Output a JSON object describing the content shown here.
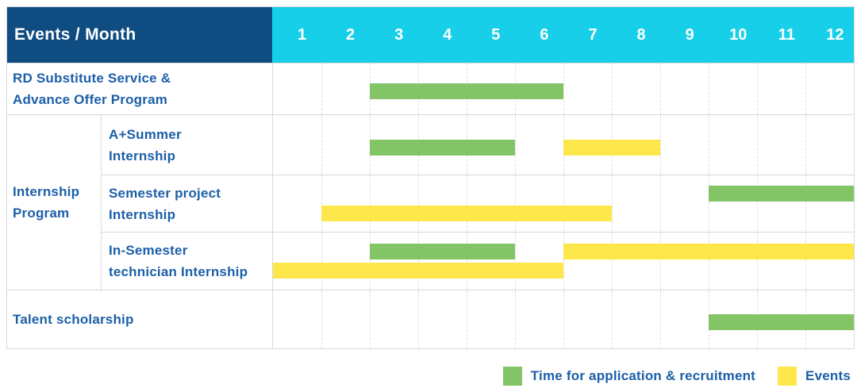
{
  "colors": {
    "header_bg": "#0e4c82",
    "months_header_bg": "#17cfe8",
    "application_green": "#83c566",
    "events_yellow": "#fde74a",
    "label_text": "#1c5fa8",
    "grid_border": "#d9d9d9"
  },
  "header": {
    "title": "Events / Month",
    "months": [
      "1",
      "2",
      "3",
      "4",
      "5",
      "6",
      "7",
      "8",
      "9",
      "10",
      "11",
      "12"
    ]
  },
  "labels": {
    "rd_substitute": "RD Substitute Service &\nAdvance Offer Program",
    "internship_program": "Internship\nProgram",
    "a_summer": "A+Summer\nInternship",
    "semester_project": "Semester project\nInternship",
    "in_semester": "In-Semester\ntechnician Internship",
    "talent_scholarship": "Talent scholarship"
  },
  "legend": {
    "application_label": "Time for application & recruitment",
    "events_label": "Events"
  },
  "chart_data": {
    "type": "gantt",
    "x_axis": {
      "unit": "month",
      "ticks": [
        1,
        2,
        3,
        4,
        5,
        6,
        7,
        8,
        9,
        10,
        11,
        12
      ]
    },
    "series": [
      {
        "key": "application",
        "name": "Time for application & recruitment",
        "color": "#83c566"
      },
      {
        "key": "events",
        "name": "Events",
        "color": "#fde74a"
      }
    ],
    "rows": [
      {
        "label": "RD Substitute Service & Advance Offer Program",
        "bars": [
          {
            "series": "application",
            "start_month": 3,
            "end_month": 6,
            "lane": "single"
          }
        ]
      },
      {
        "group": "Internship Program",
        "label": "A+Summer Internship",
        "bars": [
          {
            "series": "application",
            "start_month": 3,
            "end_month": 5,
            "lane": "single"
          },
          {
            "series": "events",
            "start_month": 7,
            "end_month": 8,
            "lane": "single"
          }
        ]
      },
      {
        "group": "Internship Program",
        "label": "Semester project Internship",
        "bars": [
          {
            "series": "application",
            "start_month": 10,
            "end_month": 12,
            "lane": "upper"
          },
          {
            "series": "events",
            "start_month": 2,
            "end_month": 7,
            "lane": "lower"
          }
        ]
      },
      {
        "group": "Internship Program",
        "label": "In-Semester technician Internship",
        "bars": [
          {
            "series": "application",
            "start_month": 3,
            "end_month": 5,
            "lane": "upper"
          },
          {
            "series": "events",
            "start_month": 7,
            "end_month": 12,
            "lane": "upper"
          },
          {
            "series": "events",
            "start_month": 1,
            "end_month": 6,
            "lane": "lower"
          }
        ]
      },
      {
        "label": "Talent scholarship",
        "bars": [
          {
            "series": "application",
            "start_month": 10,
            "end_month": 12,
            "lane": "single"
          }
        ]
      }
    ]
  }
}
